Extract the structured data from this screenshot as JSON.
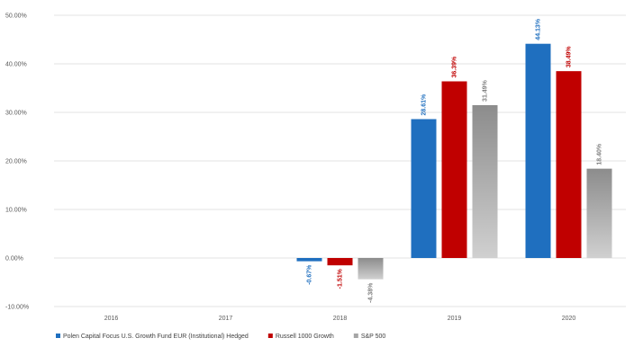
{
  "chart_data": {
    "type": "bar",
    "categories": [
      "2016",
      "2017",
      "2018",
      "2019",
      "2020"
    ],
    "series": [
      {
        "name": "Polen Capital Focus U.S. Growth Fund EUR (Institutional) Hedged",
        "values": [
          null,
          null,
          -0.67,
          28.61,
          44.13
        ],
        "labels": [
          "",
          "",
          "-0.67%",
          "28.61%",
          "44.13%"
        ],
        "color": "#1f6fbf"
      },
      {
        "name": "Russell 1000 Growth",
        "values": [
          null,
          null,
          -1.51,
          36.39,
          38.49
        ],
        "labels": [
          "",
          "",
          "-1.51%",
          "36.39%",
          "38.49%"
        ],
        "color": "#c00000"
      },
      {
        "name": "S&P 500",
        "values": [
          null,
          null,
          -4.38,
          31.49,
          18.4
        ],
        "labels": [
          "",
          "",
          "-4.38%",
          "31.49%",
          "18.40%"
        ],
        "color": "#a6a6a6"
      }
    ],
    "y_ticks": [
      "-10.00%",
      "0.00%",
      "10.00%",
      "20.00%",
      "30.00%",
      "40.00%",
      "50.00%"
    ],
    "ylim": [
      -10,
      50
    ],
    "grid": true,
    "legend_position": "bottom"
  }
}
